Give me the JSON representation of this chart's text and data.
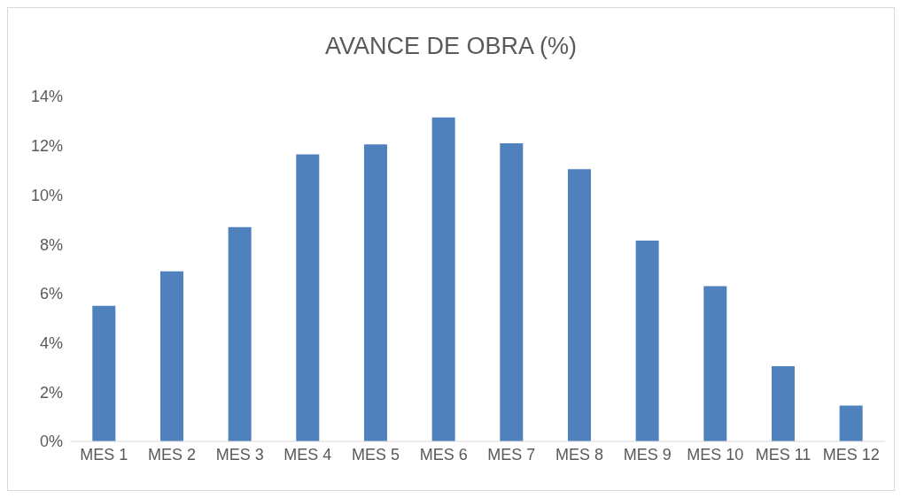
{
  "chart_data": {
    "type": "bar",
    "title": "AVANCE DE OBRA (%)",
    "categories": [
      "MES 1",
      "MES 2",
      "MES 3",
      "MES 4",
      "MES 5",
      "MES 6",
      "MES 7",
      "MES 8",
      "MES 9",
      "MES 10",
      "MES 11",
      "MES 12"
    ],
    "values": [
      5.5,
      6.9,
      8.7,
      11.65,
      12.05,
      13.15,
      12.1,
      11.05,
      8.15,
      6.3,
      3.05,
      1.45
    ],
    "color": "#4f81bd",
    "ylim": [
      0,
      14
    ],
    "yticks": [
      {
        "value": 0,
        "label": "0%"
      },
      {
        "value": 2,
        "label": "2%"
      },
      {
        "value": 4,
        "label": "4%"
      },
      {
        "value": 6,
        "label": "6%"
      },
      {
        "value": 8,
        "label": "8%"
      },
      {
        "value": 10,
        "label": "10%"
      },
      {
        "value": 12,
        "label": "12%"
      },
      {
        "value": 14,
        "label": "14%"
      }
    ],
    "grid": false,
    "legend": false
  }
}
